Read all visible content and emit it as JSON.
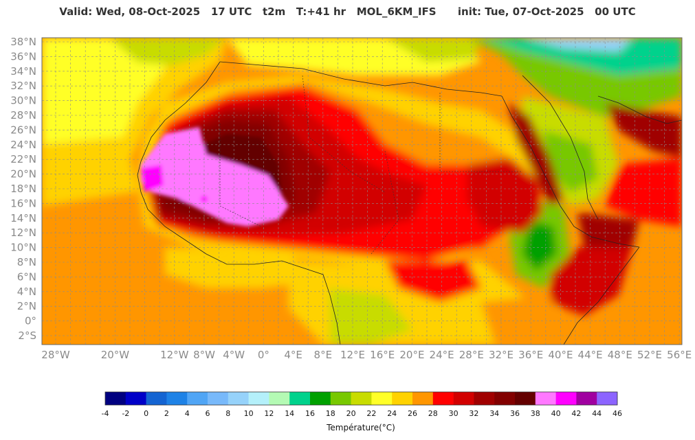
{
  "header": {
    "title": "Valid: Wed, 08-Oct-2025   17 UTC   t2m   T:+41 hr   MOL_6KM_IFS      init: Tue, 07-Oct-2025   00 UTC"
  },
  "map": {
    "lat_labels": [
      "38°N",
      "36°N",
      "34°N",
      "32°N",
      "30°N",
      "28°N",
      "26°N",
      "24°N",
      "22°N",
      "20°N",
      "18°N",
      "16°N",
      "14°N",
      "12°N",
      "10°N",
      "8°N",
      "6°N",
      "4°N",
      "2°N",
      "0°",
      "2°S"
    ],
    "lon_labels": [
      "28°W",
      "20°W",
      "12°W",
      "8°W",
      "4°W",
      "0°",
      "4°E",
      "8°E",
      "12°E",
      "16°E",
      "20°E",
      "24°E",
      "28°E",
      "32°E",
      "36°E",
      "40°E",
      "44°E",
      "48°E",
      "52°E",
      "56°E"
    ],
    "field": "2 m temperature"
  },
  "colorbar": {
    "title": "Température(°C)",
    "ticks": [
      "-4",
      "-2",
      "0",
      "2",
      "4",
      "6",
      "8",
      "10",
      "12",
      "14",
      "16",
      "18",
      "20",
      "22",
      "24",
      "26",
      "28",
      "30",
      "32",
      "34",
      "36",
      "38",
      "40",
      "42",
      "44",
      "46"
    ],
    "colors": [
      "#000080",
      "#0000c8",
      "#1464d2",
      "#1e82e6",
      "#50a5f5",
      "#78b9fa",
      "#96d2fa",
      "#b4f0fa",
      "#b4fab4",
      "#00d28c",
      "#00a000",
      "#78c800",
      "#c8dc00",
      "#ffff28",
      "#ffd200",
      "#ff9600",
      "#ff0000",
      "#d20000",
      "#a00000",
      "#820000",
      "#640000",
      "#ff78ff",
      "#ff00ff",
      "#a000a0",
      "#8c64ff"
    ]
  }
}
